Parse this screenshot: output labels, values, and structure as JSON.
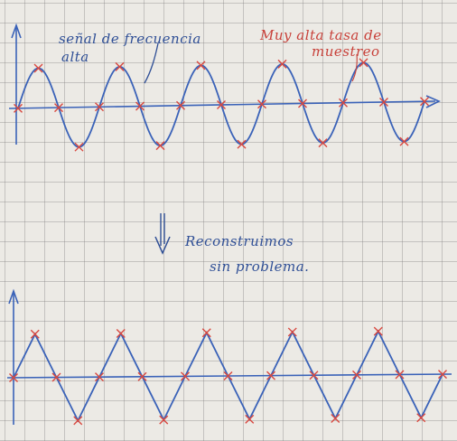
{
  "annotations": {
    "high_freq_signal_line1": "señal de frecuencia",
    "high_freq_signal_line2": "alta",
    "high_sample_rate_line1": "Muy alta tasa de",
    "high_sample_rate_line2": "muestreo",
    "reconstruct_line1": "Reconstruimos",
    "reconstruct_line2": "sin problema."
  },
  "colors": {
    "paper": "#eceae5",
    "grid": "#9a9a9a",
    "ink_blue": "#3a62b8",
    "ink_red": "#d9483f",
    "pen_blue": "#2f4f96"
  },
  "icons": {
    "arrow_down": "down-arrow-icon",
    "sample_mark": "x-cross-icon"
  },
  "top_plot": {
    "waveform": "sine",
    "cycles": 5,
    "samples_per_cycle": 4
  },
  "bottom_plot": {
    "waveform": "triangle",
    "cycles": 5,
    "samples_per_cycle": 4
  }
}
